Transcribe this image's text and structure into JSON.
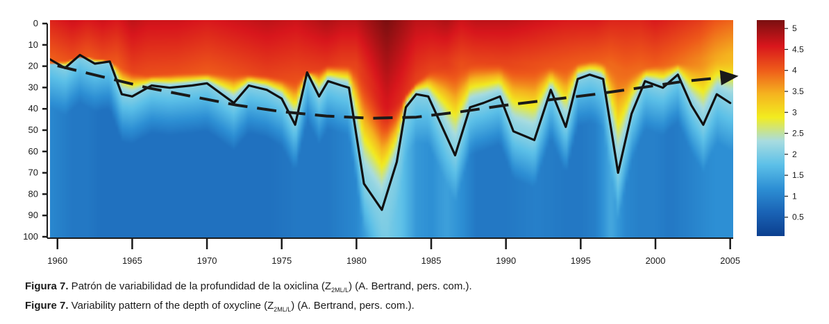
{
  "chart_data": {
    "type": "heatmap",
    "title": "",
    "xlabel": "",
    "ylabel": "",
    "x_ticks": [
      "1960",
      "1965",
      "1970",
      "1975",
      "1980",
      "1985",
      "1990",
      "1995",
      "2000",
      "2005"
    ],
    "y_ticks": [
      "0",
      "10",
      "20",
      "30",
      "40",
      "50",
      "60",
      "70",
      "80",
      "90",
      "100"
    ],
    "xlim": [
      1959.5,
      2005.2
    ],
    "ylim": [
      0,
      100
    ],
    "y_inverted": true,
    "colorbar": {
      "ticks": [
        "0.5",
        "1",
        "1.5",
        "2",
        "2.5",
        "3",
        "3.5",
        "4",
        "4.5",
        "5"
      ],
      "range": [
        0.05,
        5.2
      ],
      "colormap": [
        "#0b3f8f",
        "#1a63b5",
        "#2d8fd4",
        "#5cc0e8",
        "#a8dce0",
        "#f2ec1f",
        "#f5b21f",
        "#ee5a1a",
        "#d8161c",
        "#7a0f10"
      ]
    },
    "series": [
      {
        "style": "solid",
        "x": [
          1959.5,
          1960.5,
          1961.5,
          1962.5,
          1963.5,
          1964.3,
          1965.0,
          1966.3,
          1967.5,
          1969.0,
          1970.0,
          1971.8,
          1972.8,
          1974.0,
          1975.0,
          1975.9,
          1976.7,
          1977.5,
          1978.1,
          1979.0,
          1979.5,
          1980.5,
          1981.7,
          1982.7,
          1983.3,
          1984.0,
          1984.8,
          1985.6,
          1986.6,
          1987.6,
          1988.5,
          1989.6,
          1990.5,
          1991.9,
          1993.0,
          1994.0,
          1994.8,
          1995.6,
          1996.5,
          1997.5,
          1998.4,
          1999.3,
          2000.5,
          2001.5,
          2002.4,
          2003.2,
          2004.1,
          2005.0
        ],
        "y": [
          18,
          22,
          16,
          20,
          19,
          34,
          35,
          30,
          31,
          30,
          29,
          38,
          30,
          32,
          36,
          48,
          24,
          35,
          28,
          30,
          31,
          75,
          87,
          65,
          40,
          34,
          35,
          47,
          62,
          40,
          38,
          35,
          51,
          55,
          32,
          49,
          27,
          25,
          27,
          70,
          43,
          28,
          31,
          25,
          39,
          48,
          34,
          38
        ]
      },
      {
        "style": "dashed-trend",
        "x": [
          1960,
          1963,
          1966,
          1969,
          1972,
          1975,
          1978,
          1981,
          1984,
          1987,
          1990,
          1993,
          1996,
          1999,
          2002,
          2005
        ],
        "y": [
          21,
          26,
          31,
          35,
          39,
          42,
          44,
          45,
          44.5,
          42,
          39,
          36.5,
          34,
          31,
          28,
          26
        ]
      }
    ],
    "surface": {
      "x": [
        1959.5,
        1961,
        1962,
        1963,
        1964,
        1965,
        1966,
        1968,
        1970,
        1972,
        1974,
        1976,
        1977,
        1978,
        1979,
        1980,
        1981,
        1982,
        1983,
        1984,
        1985,
        1986,
        1987,
        1988,
        1990,
        1992,
        1994,
        1995,
        1996,
        1997,
        1998,
        1999,
        2000,
        2001,
        2002,
        2003,
        2004,
        2005
      ],
      "mld": [
        20,
        18,
        17,
        18,
        20,
        23,
        25,
        24,
        24,
        24,
        25,
        27,
        23,
        20,
        20,
        20,
        28,
        38,
        36,
        28,
        22,
        18,
        20,
        18,
        19,
        20,
        21,
        19,
        18,
        20,
        24,
        22,
        20,
        20,
        19,
        18,
        17,
        16
      ],
      "sfc": [
        4.5,
        4.7,
        4.6,
        4.7,
        4.6,
        4.8,
        4.7,
        4.7,
        4.6,
        4.7,
        4.8,
        4.7,
        4.8,
        4.9,
        4.8,
        4.8,
        5.0,
        5.2,
        5.0,
        4.8,
        4.8,
        4.9,
        4.7,
        4.8,
        4.8,
        4.7,
        4.6,
        4.6,
        4.6,
        4.5,
        4.5,
        4.5,
        4.6,
        4.5,
        4.4,
        4.3,
        4.1,
        4.0
      ],
      "deep": [
        1.1,
        0.9,
        0.9,
        0.8,
        0.8,
        0.8,
        0.8,
        0.8,
        0.8,
        0.8,
        0.8,
        0.9,
        0.9,
        0.9,
        1.0,
        1.1,
        1.6,
        2.0,
        1.8,
        1.3,
        1.2,
        1.4,
        1.2,
        0.9,
        0.9,
        1.0,
        0.9,
        0.9,
        1.0,
        1.5,
        1.1,
        1.0,
        1.0,
        0.9,
        1.0,
        1.1,
        1.2,
        1.2
      ]
    }
  },
  "captions": {
    "es": {
      "label": "Figura 7.",
      "text": " Patrón de variabilidad de la profundidad de la oxiclina (",
      "var": "Z",
      "sub": "2ML/L",
      "tail": ") (A. Bertrand, pers. com.)."
    },
    "en": {
      "label": "Figure 7.",
      "text": " Variability pattern of the depth of oxycline (",
      "var": "Z",
      "sub": "2ML/L",
      "tail": ") (A. Bertrand, pers. com.)."
    }
  }
}
